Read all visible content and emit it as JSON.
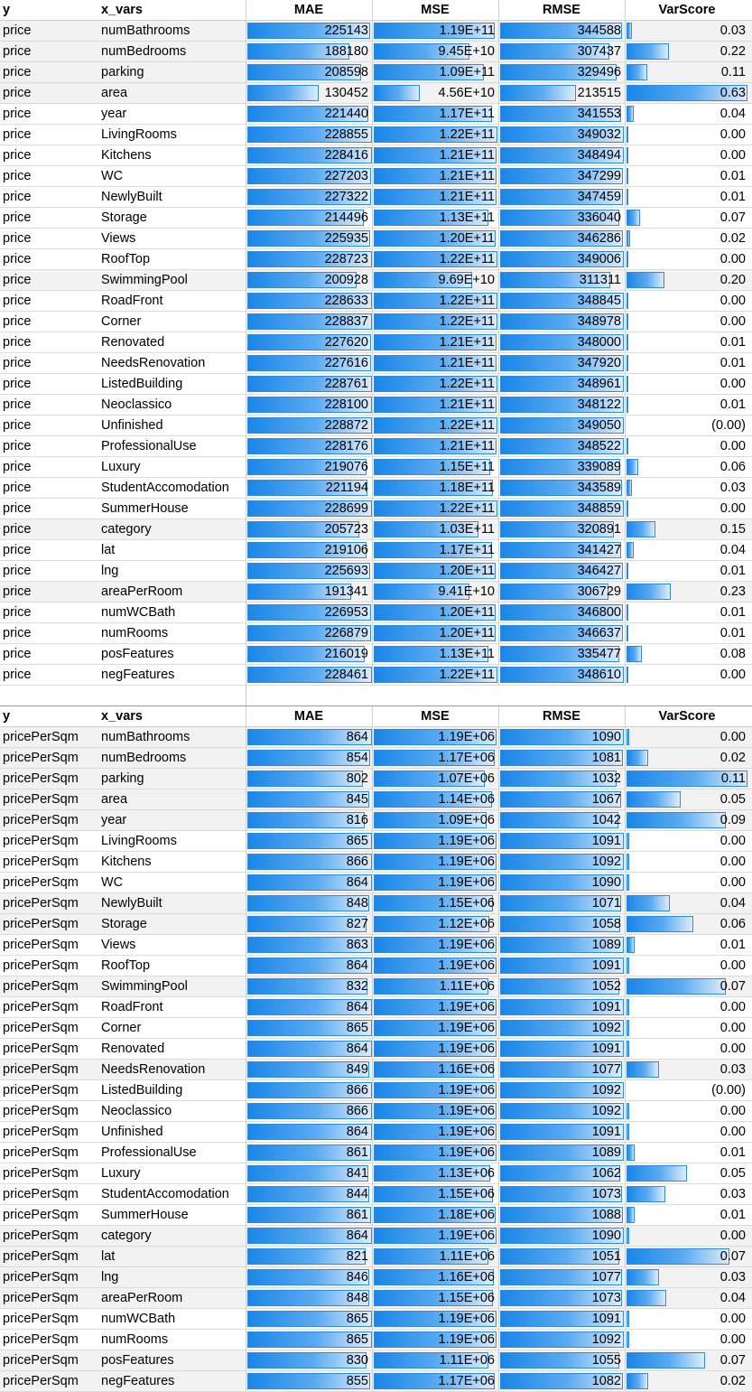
{
  "headers": {
    "y": "y",
    "x_vars": "x_vars",
    "mae": "MAE",
    "mse": "MSE",
    "rmse": "RMSE",
    "varscore": "VarScore"
  },
  "colors": {
    "bar_start": "#1a86e8",
    "bar_end": "#dcecfb",
    "bar_border": "#2f8ae0",
    "row_highlight": "#f2f2f2"
  },
  "tables": [
    {
      "y_label": "price",
      "rows": [
        {
          "x": "numBathrooms",
          "mae": "225143",
          "mse": "1.19E+11",
          "rmse": "344588",
          "var": "0.03",
          "mae_fill": 0.983,
          "mse_fill": 0.975,
          "rmse_fill": 0.987,
          "var_fill": 0.048,
          "hl": true
        },
        {
          "x": "numBedrooms",
          "mae": "188180",
          "mse": "9.45E+10",
          "rmse": "307437",
          "var": "0.22",
          "mae_fill": 0.822,
          "mse_fill": 0.775,
          "rmse_fill": 0.881,
          "var_fill": 0.349,
          "hl": true
        },
        {
          "x": "parking",
          "mae": "208598",
          "mse": "1.09E+11",
          "rmse": "329496",
          "var": "0.11",
          "mae_fill": 0.911,
          "mse_fill": 0.893,
          "rmse_fill": 0.944,
          "var_fill": 0.175,
          "hl": true
        },
        {
          "x": "area",
          "mae": "130452",
          "mse": "4.56E+10",
          "rmse": "213515",
          "var": "0.63",
          "mae_fill": 0.57,
          "mse_fill": 0.374,
          "rmse_fill": 0.612,
          "var_fill": 1.0,
          "hl": true
        },
        {
          "x": "year",
          "mae": "221440",
          "mse": "1.17E+11",
          "rmse": "341553",
          "var": "0.04",
          "mae_fill": 0.968,
          "mse_fill": 0.959,
          "rmse_fill": 0.979,
          "var_fill": 0.063,
          "hl": false
        },
        {
          "x": "LivingRooms",
          "mae": "228855",
          "mse": "1.22E+11",
          "rmse": "349032",
          "var": "0.00",
          "mae_fill": 1.0,
          "mse_fill": 1.0,
          "rmse_fill": 1.0,
          "var_fill": 0.006,
          "hl": false
        },
        {
          "x": "Kitchens",
          "mae": "228416",
          "mse": "1.21E+11",
          "rmse": "348494",
          "var": "0.00",
          "mae_fill": 0.998,
          "mse_fill": 0.992,
          "rmse_fill": 0.998,
          "var_fill": 0.006,
          "hl": false
        },
        {
          "x": "WC",
          "mae": "227203",
          "mse": "1.21E+11",
          "rmse": "347299",
          "var": "0.01",
          "mae_fill": 0.993,
          "mse_fill": 0.992,
          "rmse_fill": 0.995,
          "var_fill": 0.016,
          "hl": false
        },
        {
          "x": "NewlyBuilt",
          "mae": "227322",
          "mse": "1.21E+11",
          "rmse": "347459",
          "var": "0.01",
          "mae_fill": 0.993,
          "mse_fill": 0.992,
          "rmse_fill": 0.995,
          "var_fill": 0.016,
          "hl": false
        },
        {
          "x": "Storage",
          "mae": "214496",
          "mse": "1.13E+11",
          "rmse": "336040",
          "var": "0.07",
          "mae_fill": 0.937,
          "mse_fill": 0.926,
          "rmse_fill": 0.963,
          "var_fill": 0.111,
          "hl": false
        },
        {
          "x": "Views",
          "mae": "225935",
          "mse": "1.20E+11",
          "rmse": "346286",
          "var": "0.02",
          "mae_fill": 0.987,
          "mse_fill": 0.984,
          "rmse_fill": 0.992,
          "var_fill": 0.032,
          "hl": false
        },
        {
          "x": "RoofTop",
          "mae": "228723",
          "mse": "1.22E+11",
          "rmse": "349006",
          "var": "0.00",
          "mae_fill": 0.999,
          "mse_fill": 1.0,
          "rmse_fill": 1.0,
          "var_fill": 0.006,
          "hl": false
        },
        {
          "x": "SwimmingPool",
          "mae": "200928",
          "mse": "9.69E+10",
          "rmse": "311311",
          "var": "0.20",
          "mae_fill": 0.878,
          "mse_fill": 0.794,
          "rmse_fill": 0.892,
          "var_fill": 0.317,
          "hl": true
        },
        {
          "x": "RoadFront",
          "mae": "228633",
          "mse": "1.22E+11",
          "rmse": "348845",
          "var": "0.00",
          "mae_fill": 0.999,
          "mse_fill": 1.0,
          "rmse_fill": 0.999,
          "var_fill": 0.006,
          "hl": false
        },
        {
          "x": "Corner",
          "mae": "228837",
          "mse": "1.22E+11",
          "rmse": "348978",
          "var": "0.00",
          "mae_fill": 1.0,
          "mse_fill": 1.0,
          "rmse_fill": 1.0,
          "var_fill": 0.006,
          "hl": false
        },
        {
          "x": "Renovated",
          "mae": "227620",
          "mse": "1.21E+11",
          "rmse": "348000",
          "var": "0.01",
          "mae_fill": 0.995,
          "mse_fill": 0.992,
          "rmse_fill": 0.997,
          "var_fill": 0.016,
          "hl": false
        },
        {
          "x": "NeedsRenovation",
          "mae": "227616",
          "mse": "1.21E+11",
          "rmse": "347920",
          "var": "0.01",
          "mae_fill": 0.995,
          "mse_fill": 0.992,
          "rmse_fill": 0.997,
          "var_fill": 0.016,
          "hl": false
        },
        {
          "x": "ListedBuilding",
          "mae": "228761",
          "mse": "1.22E+11",
          "rmse": "348961",
          "var": "0.00",
          "mae_fill": 1.0,
          "mse_fill": 1.0,
          "rmse_fill": 1.0,
          "var_fill": 0.006,
          "hl": false
        },
        {
          "x": "Neoclassico",
          "mae": "228100",
          "mse": "1.21E+11",
          "rmse": "348122",
          "var": "0.01",
          "mae_fill": 0.997,
          "mse_fill": 0.992,
          "rmse_fill": 0.997,
          "var_fill": 0.016,
          "hl": false
        },
        {
          "x": "Unfinished",
          "mae": "228872",
          "mse": "1.22E+11",
          "rmse": "349050",
          "var": "(0.00)",
          "mae_fill": 1.0,
          "mse_fill": 1.0,
          "rmse_fill": 1.0,
          "var_fill": 0.0,
          "hl": false
        },
        {
          "x": "ProfessionalUse",
          "mae": "228176",
          "mse": "1.21E+11",
          "rmse": "348522",
          "var": "0.00",
          "mae_fill": 0.997,
          "mse_fill": 0.992,
          "rmse_fill": 0.998,
          "var_fill": 0.006,
          "hl": false
        },
        {
          "x": "Luxury",
          "mae": "219076",
          "mse": "1.15E+11",
          "rmse": "339089",
          "var": "0.06",
          "mae_fill": 0.957,
          "mse_fill": 0.943,
          "rmse_fill": 0.971,
          "var_fill": 0.095,
          "hl": false
        },
        {
          "x": "StudentAccomodation",
          "mae": "221194",
          "mse": "1.18E+11",
          "rmse": "343589",
          "var": "0.03",
          "mae_fill": 0.966,
          "mse_fill": 0.967,
          "rmse_fill": 0.984,
          "var_fill": 0.048,
          "hl": false
        },
        {
          "x": "SummerHouse",
          "mae": "228699",
          "mse": "1.22E+11",
          "rmse": "348859",
          "var": "0.00",
          "mae_fill": 0.999,
          "mse_fill": 1.0,
          "rmse_fill": 0.999,
          "var_fill": 0.006,
          "hl": false
        },
        {
          "x": "category",
          "mae": "205723",
          "mse": "1.03E+11",
          "rmse": "320891",
          "var": "0.15",
          "mae_fill": 0.899,
          "mse_fill": 0.844,
          "rmse_fill": 0.919,
          "var_fill": 0.238,
          "hl": true
        },
        {
          "x": "lat",
          "mae": "219106",
          "mse": "1.17E+11",
          "rmse": "341427",
          "var": "0.04",
          "mae_fill": 0.957,
          "mse_fill": 0.959,
          "rmse_fill": 0.978,
          "var_fill": 0.063,
          "hl": false
        },
        {
          "x": "lng",
          "mae": "225693",
          "mse": "1.20E+11",
          "rmse": "346427",
          "var": "0.01",
          "mae_fill": 0.986,
          "mse_fill": 0.984,
          "rmse_fill": 0.993,
          "var_fill": 0.016,
          "hl": false
        },
        {
          "x": "areaPerRoom",
          "mae": "191341",
          "mse": "9.41E+10",
          "rmse": "306729",
          "var": "0.23",
          "mae_fill": 0.836,
          "mse_fill": 0.771,
          "rmse_fill": 0.879,
          "var_fill": 0.365,
          "hl": true
        },
        {
          "x": "numWCBath",
          "mae": "226953",
          "mse": "1.20E+11",
          "rmse": "346800",
          "var": "0.01",
          "mae_fill": 0.992,
          "mse_fill": 0.984,
          "rmse_fill": 0.994,
          "var_fill": 0.016,
          "hl": false
        },
        {
          "x": "numRooms",
          "mae": "226879",
          "mse": "1.20E+11",
          "rmse": "346637",
          "var": "0.01",
          "mae_fill": 0.991,
          "mse_fill": 0.984,
          "rmse_fill": 0.993,
          "var_fill": 0.016,
          "hl": false
        },
        {
          "x": "posFeatures",
          "mae": "216019",
          "mse": "1.13E+11",
          "rmse": "335477",
          "var": "0.08",
          "mae_fill": 0.944,
          "mse_fill": 0.926,
          "rmse_fill": 0.961,
          "var_fill": 0.127,
          "hl": false
        },
        {
          "x": "negFeatures",
          "mae": "228461",
          "mse": "1.22E+11",
          "rmse": "348610",
          "var": "0.00",
          "mae_fill": 0.998,
          "mse_fill": 1.0,
          "rmse_fill": 0.999,
          "var_fill": 0.006,
          "hl": false
        }
      ]
    },
    {
      "y_label": "pricePerSqm",
      "rows": [
        {
          "x": "numBathrooms",
          "mae": "864",
          "mse": "1.19E+06",
          "rmse": "1090",
          "var": "0.00",
          "mae_fill": 0.998,
          "mse_fill": 0.994,
          "rmse_fill": 0.998,
          "var_fill": 0.02,
          "hl": true
        },
        {
          "x": "numBedrooms",
          "mae": "854",
          "mse": "1.17E+06",
          "rmse": "1081",
          "var": "0.02",
          "mae_fill": 0.986,
          "mse_fill": 0.978,
          "rmse_fill": 0.99,
          "var_fill": 0.18,
          "hl": true
        },
        {
          "x": "parking",
          "mae": "802",
          "mse": "1.07E+06",
          "rmse": "1032",
          "var": "0.11",
          "mae_fill": 0.926,
          "mse_fill": 0.895,
          "rmse_fill": 0.945,
          "var_fill": 1.0,
          "hl": true
        },
        {
          "x": "area",
          "mae": "845",
          "mse": "1.14E+06",
          "rmse": "1067",
          "var": "0.05",
          "mae_fill": 0.976,
          "mse_fill": 0.953,
          "rmse_fill": 0.977,
          "var_fill": 0.45,
          "hl": true
        },
        {
          "x": "year",
          "mae": "816",
          "mse": "1.09E+06",
          "rmse": "1042",
          "var": "0.09",
          "mae_fill": 0.942,
          "mse_fill": 0.911,
          "rmse_fill": 0.954,
          "var_fill": 0.82,
          "hl": true
        },
        {
          "x": "LivingRooms",
          "mae": "865",
          "mse": "1.19E+06",
          "rmse": "1091",
          "var": "0.00",
          "mae_fill": 0.999,
          "mse_fill": 0.994,
          "rmse_fill": 0.999,
          "var_fill": 0.02,
          "hl": false
        },
        {
          "x": "Kitchens",
          "mae": "866",
          "mse": "1.19E+06",
          "rmse": "1092",
          "var": "0.00",
          "mae_fill": 1.0,
          "mse_fill": 0.994,
          "rmse_fill": 1.0,
          "var_fill": 0.02,
          "hl": false
        },
        {
          "x": "WC",
          "mae": "864",
          "mse": "1.19E+06",
          "rmse": "1090",
          "var": "0.00",
          "mae_fill": 0.998,
          "mse_fill": 0.994,
          "rmse_fill": 0.998,
          "var_fill": 0.02,
          "hl": false
        },
        {
          "x": "NewlyBuilt",
          "mae": "848",
          "mse": "1.15E+06",
          "rmse": "1071",
          "var": "0.04",
          "mae_fill": 0.979,
          "mse_fill": 0.962,
          "rmse_fill": 0.981,
          "var_fill": 0.36,
          "hl": true
        },
        {
          "x": "Storage",
          "mae": "827",
          "mse": "1.12E+06",
          "rmse": "1058",
          "var": "0.06",
          "mae_fill": 0.955,
          "mse_fill": 0.937,
          "rmse_fill": 0.969,
          "var_fill": 0.55,
          "hl": true
        },
        {
          "x": "Views",
          "mae": "863",
          "mse": "1.19E+06",
          "rmse": "1089",
          "var": "0.01",
          "mae_fill": 0.997,
          "mse_fill": 0.994,
          "rmse_fill": 0.997,
          "var_fill": 0.07,
          "hl": false
        },
        {
          "x": "RoofTop",
          "mae": "864",
          "mse": "1.19E+06",
          "rmse": "1091",
          "var": "0.00",
          "mae_fill": 0.998,
          "mse_fill": 0.994,
          "rmse_fill": 0.999,
          "var_fill": 0.02,
          "hl": false
        },
        {
          "x": "SwimmingPool",
          "mae": "832",
          "mse": "1.11E+06",
          "rmse": "1052",
          "var": "0.07",
          "mae_fill": 0.961,
          "mse_fill": 0.928,
          "rmse_fill": 0.963,
          "var_fill": 0.82,
          "hl": true
        },
        {
          "x": "RoadFront",
          "mae": "864",
          "mse": "1.19E+06",
          "rmse": "1091",
          "var": "0.00",
          "mae_fill": 0.998,
          "mse_fill": 0.994,
          "rmse_fill": 0.999,
          "var_fill": 0.02,
          "hl": false
        },
        {
          "x": "Corner",
          "mae": "865",
          "mse": "1.19E+06",
          "rmse": "1092",
          "var": "0.00",
          "mae_fill": 0.999,
          "mse_fill": 0.994,
          "rmse_fill": 1.0,
          "var_fill": 0.02,
          "hl": false
        },
        {
          "x": "Renovated",
          "mae": "864",
          "mse": "1.19E+06",
          "rmse": "1091",
          "var": "0.00",
          "mae_fill": 0.998,
          "mse_fill": 0.994,
          "rmse_fill": 0.999,
          "var_fill": 0.02,
          "hl": false
        },
        {
          "x": "NeedsRenovation",
          "mae": "849",
          "mse": "1.16E+06",
          "rmse": "1077",
          "var": "0.03",
          "mae_fill": 0.98,
          "mse_fill": 0.97,
          "rmse_fill": 0.986,
          "var_fill": 0.27,
          "hl": true
        },
        {
          "x": "ListedBuilding",
          "mae": "866",
          "mse": "1.19E+06",
          "rmse": "1092",
          "var": "(0.00)",
          "mae_fill": 1.0,
          "mse_fill": 0.994,
          "rmse_fill": 1.0,
          "var_fill": 0.0,
          "hl": false
        },
        {
          "x": "Neoclassico",
          "mae": "866",
          "mse": "1.19E+06",
          "rmse": "1092",
          "var": "0.00",
          "mae_fill": 1.0,
          "mse_fill": 0.994,
          "rmse_fill": 1.0,
          "var_fill": 0.02,
          "hl": false
        },
        {
          "x": "Unfinished",
          "mae": "864",
          "mse": "1.19E+06",
          "rmse": "1091",
          "var": "0.00",
          "mae_fill": 0.998,
          "mse_fill": 0.994,
          "rmse_fill": 0.999,
          "var_fill": 0.02,
          "hl": false
        },
        {
          "x": "ProfessionalUse",
          "mae": "861",
          "mse": "1.19E+06",
          "rmse": "1089",
          "var": "0.01",
          "mae_fill": 0.994,
          "mse_fill": 0.994,
          "rmse_fill": 0.997,
          "var_fill": 0.07,
          "hl": false
        },
        {
          "x": "Luxury",
          "mae": "841",
          "mse": "1.13E+06",
          "rmse": "1062",
          "var": "0.05",
          "mae_fill": 0.971,
          "mse_fill": 0.945,
          "rmse_fill": 0.973,
          "var_fill": 0.5,
          "hl": false
        },
        {
          "x": "StudentAccomodation",
          "mae": "844",
          "mse": "1.15E+06",
          "rmse": "1073",
          "var": "0.03",
          "mae_fill": 0.975,
          "mse_fill": 0.962,
          "rmse_fill": 0.983,
          "var_fill": 0.32,
          "hl": false
        },
        {
          "x": "SummerHouse",
          "mae": "861",
          "mse": "1.18E+06",
          "rmse": "1088",
          "var": "0.01",
          "mae_fill": 0.994,
          "mse_fill": 0.987,
          "rmse_fill": 0.996,
          "var_fill": 0.07,
          "hl": false
        },
        {
          "x": "category",
          "mae": "864",
          "mse": "1.19E+06",
          "rmse": "1090",
          "var": "0.00",
          "mae_fill": 0.998,
          "mse_fill": 0.994,
          "rmse_fill": 0.998,
          "var_fill": 0.02,
          "hl": true
        },
        {
          "x": "lat",
          "mae": "821",
          "mse": "1.11E+06",
          "rmse": "1051",
          "var": "0.07",
          "mae_fill": 0.948,
          "mse_fill": 0.928,
          "rmse_fill": 0.962,
          "var_fill": 0.85,
          "hl": true
        },
        {
          "x": "lng",
          "mae": "846",
          "mse": "1.16E+06",
          "rmse": "1077",
          "var": "0.03",
          "mae_fill": 0.977,
          "mse_fill": 0.97,
          "rmse_fill": 0.986,
          "var_fill": 0.27,
          "hl": true
        },
        {
          "x": "areaPerRoom",
          "mae": "848",
          "mse": "1.15E+06",
          "rmse": "1073",
          "var": "0.04",
          "mae_fill": 0.979,
          "mse_fill": 0.962,
          "rmse_fill": 0.983,
          "var_fill": 0.33,
          "hl": true
        },
        {
          "x": "numWCBath",
          "mae": "865",
          "mse": "1.19E+06",
          "rmse": "1091",
          "var": "0.00",
          "mae_fill": 0.999,
          "mse_fill": 0.994,
          "rmse_fill": 0.999,
          "var_fill": 0.02,
          "hl": false
        },
        {
          "x": "numRooms",
          "mae": "865",
          "mse": "1.19E+06",
          "rmse": "1092",
          "var": "0.00",
          "mae_fill": 0.999,
          "mse_fill": 0.994,
          "rmse_fill": 1.0,
          "var_fill": 0.02,
          "hl": false
        },
        {
          "x": "posFeatures",
          "mae": "830",
          "mse": "1.11E+06",
          "rmse": "1055",
          "var": "0.07",
          "mae_fill": 0.958,
          "mse_fill": 0.928,
          "rmse_fill": 0.966,
          "var_fill": 0.65,
          "hl": true
        },
        {
          "x": "negFeatures",
          "mae": "855",
          "mse": "1.17E+06",
          "rmse": "1082",
          "var": "0.02",
          "mae_fill": 0.987,
          "mse_fill": 0.978,
          "rmse_fill": 0.991,
          "var_fill": 0.18,
          "hl": true
        }
      ]
    }
  ]
}
